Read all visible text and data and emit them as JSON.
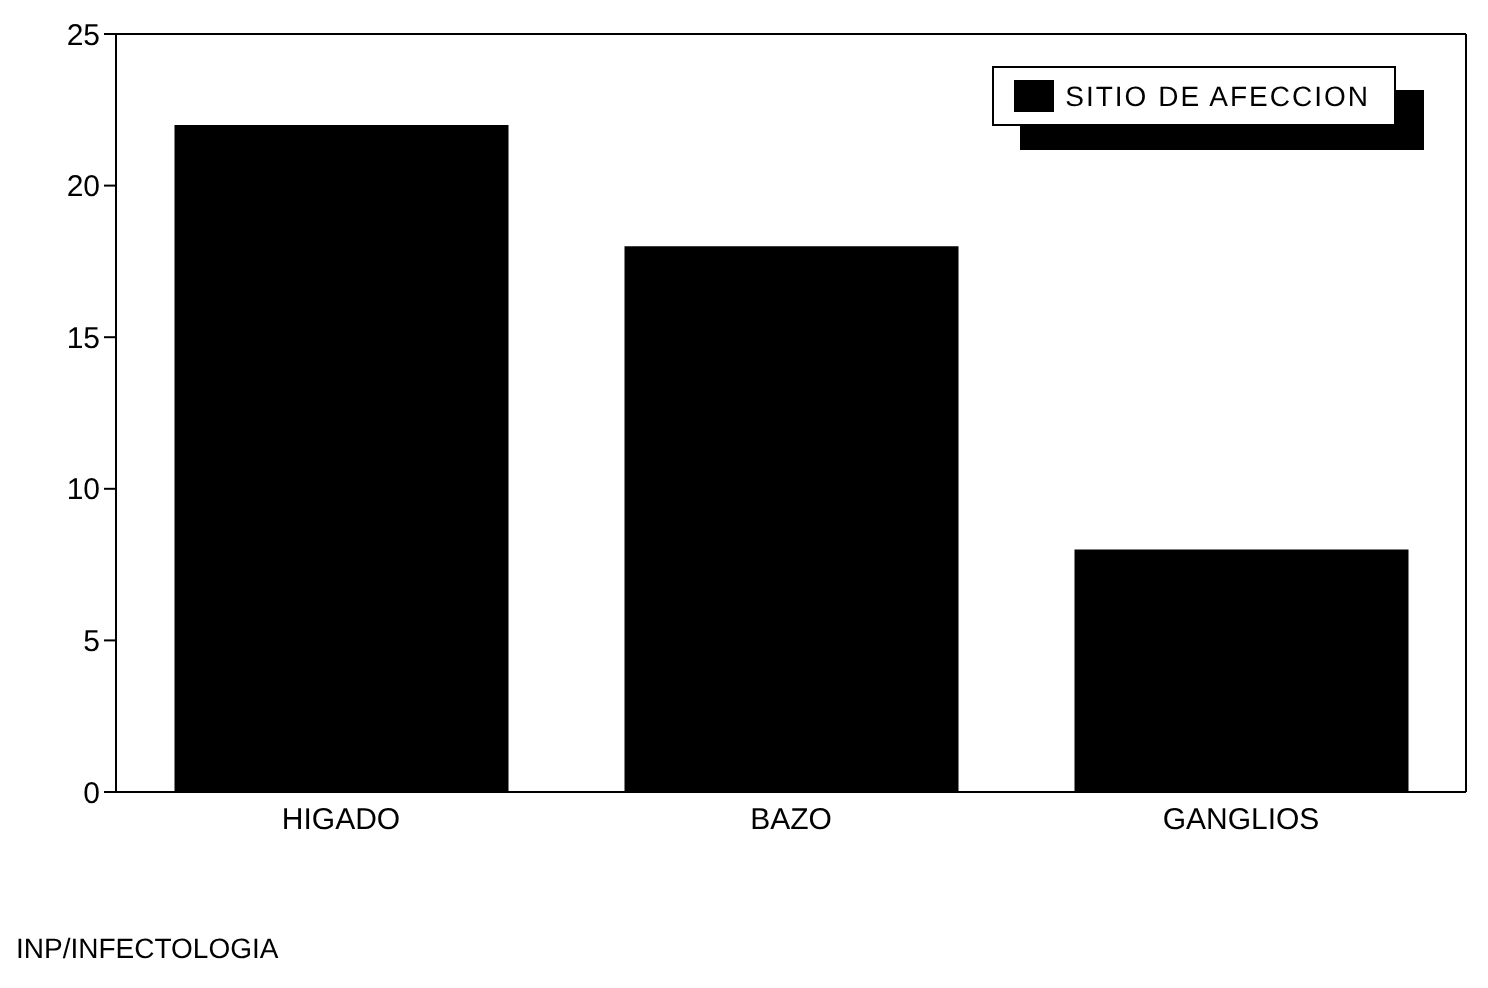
{
  "chart_data": {
    "type": "bar",
    "categories": [
      "HIGADO",
      "BAZO",
      "GANGLIOS"
    ],
    "series": [
      {
        "name": "SITIO DE AFECCION",
        "color": "#000000",
        "values": [
          22,
          18,
          8
        ]
      }
    ],
    "ylim": [
      0,
      25
    ],
    "yticks": [
      0,
      5,
      10,
      15,
      20,
      25
    ],
    "legend": "top right",
    "annotations": [
      "INP/INFECTOLOGIA"
    ]
  }
}
